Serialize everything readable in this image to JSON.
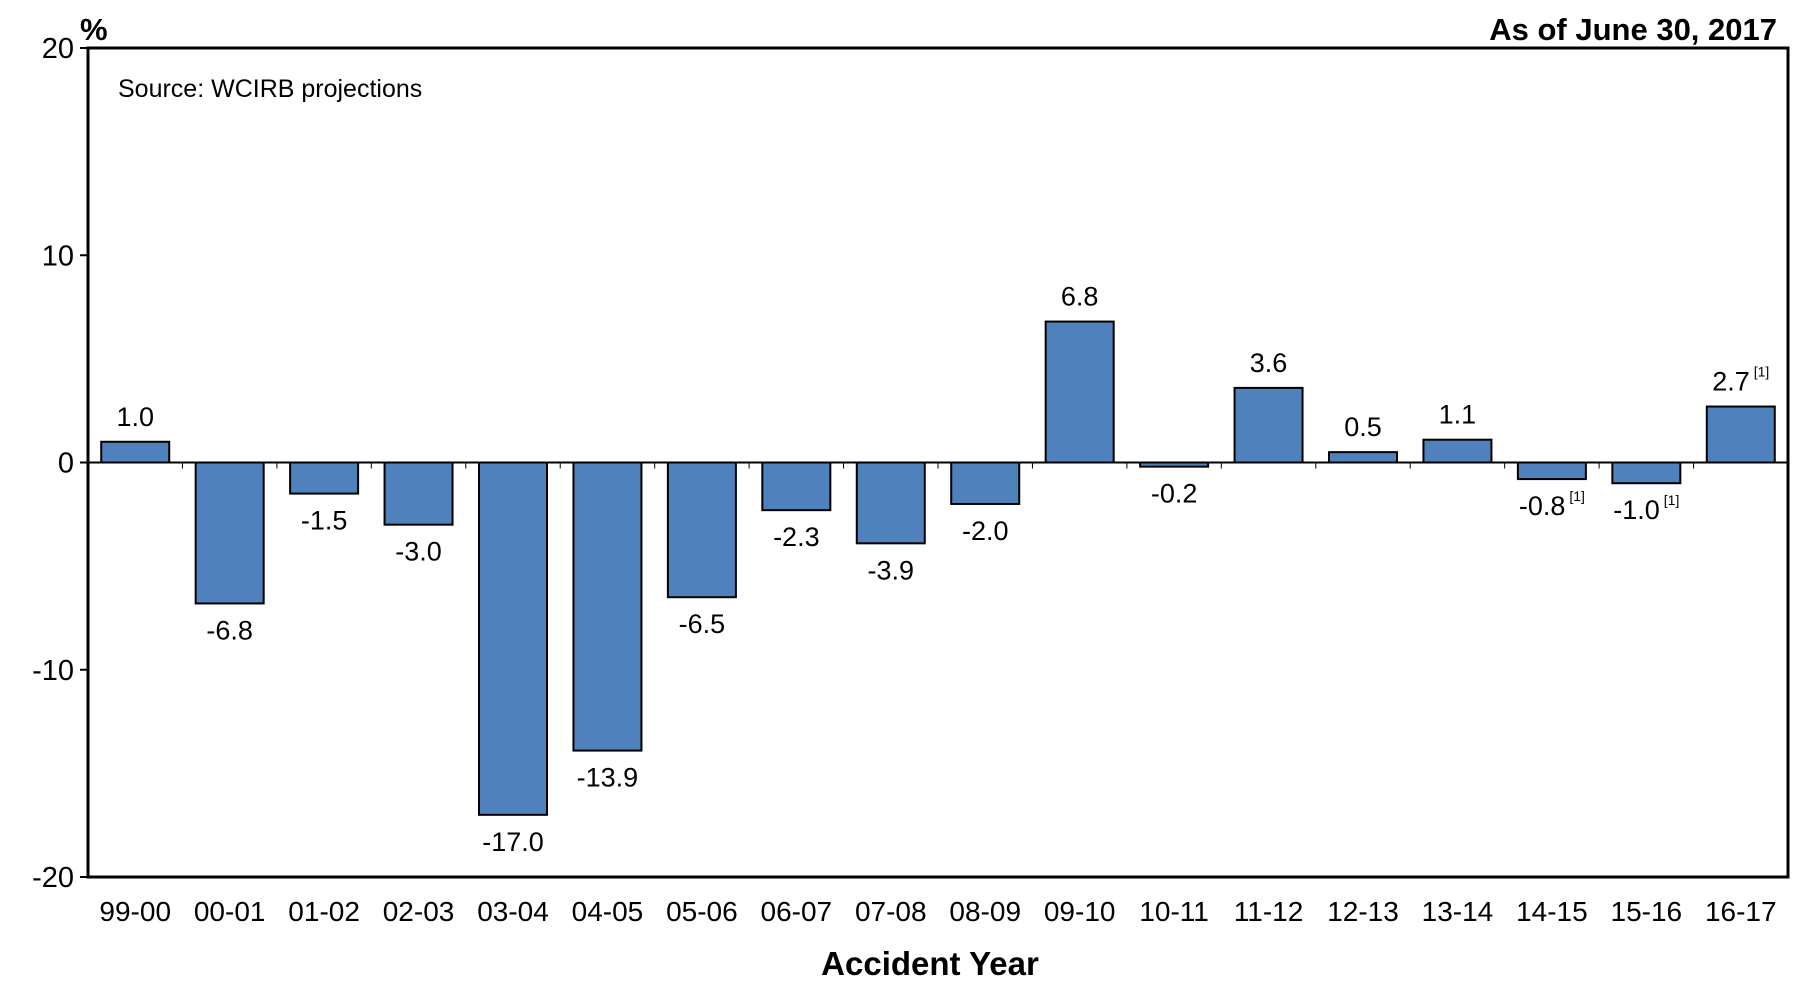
{
  "chart_data": {
    "type": "bar",
    "title": "",
    "unit_label": "%",
    "as_of": "As of June 30, 2017",
    "source_note": "Source: WCIRB projections",
    "xlabel": "Accident Year",
    "ylabel": "",
    "ylim": [
      -20,
      20
    ],
    "yticks": [
      20,
      10,
      0,
      -10,
      -20
    ],
    "grid": false,
    "bar_color": "#4f81bd",
    "categories": [
      "99-00",
      "00-01",
      "01-02",
      "02-03",
      "03-04",
      "04-05",
      "05-06",
      "06-07",
      "07-08",
      "08-09",
      "09-10",
      "10-11",
      "11-12",
      "12-13",
      "13-14",
      "14-15",
      "15-16",
      "16-17"
    ],
    "values": [
      1.0,
      -6.8,
      -1.5,
      -3.0,
      -17.0,
      -13.9,
      -6.5,
      -2.3,
      -3.9,
      -2.0,
      6.8,
      -0.2,
      3.6,
      0.5,
      1.1,
      -0.8,
      -1.0,
      2.7
    ],
    "data_labels": [
      "1.0",
      "-6.8",
      "-1.5",
      "-3.0",
      "-17.0",
      "-13.9",
      "-6.5",
      "-2.3",
      "-3.9",
      "-2.0",
      "6.8",
      "-0.2",
      "3.6",
      "0.5",
      "1.1",
      "-0.8",
      "-1.0",
      "2.7"
    ],
    "footnote_marks": [
      "",
      "",
      "",
      "",
      "",
      "",
      "",
      "",
      "",
      "",
      "",
      "",
      "",
      "",
      "",
      "[1]",
      "[1]",
      "[1]"
    ]
  }
}
